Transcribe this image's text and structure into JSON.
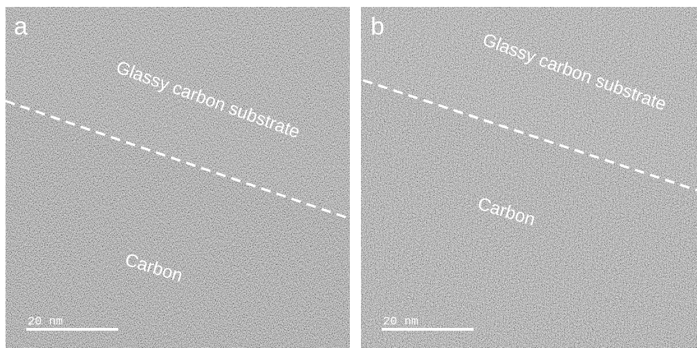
{
  "panels": [
    {
      "label": "a",
      "upper_region": "Glassy carbon substrate",
      "lower_region": "Carbon",
      "scale_bar": "20 nm"
    },
    {
      "label": "b",
      "upper_region": "Glassy carbon substrate",
      "lower_region": "Carbon",
      "scale_bar": "20 nm"
    }
  ]
}
